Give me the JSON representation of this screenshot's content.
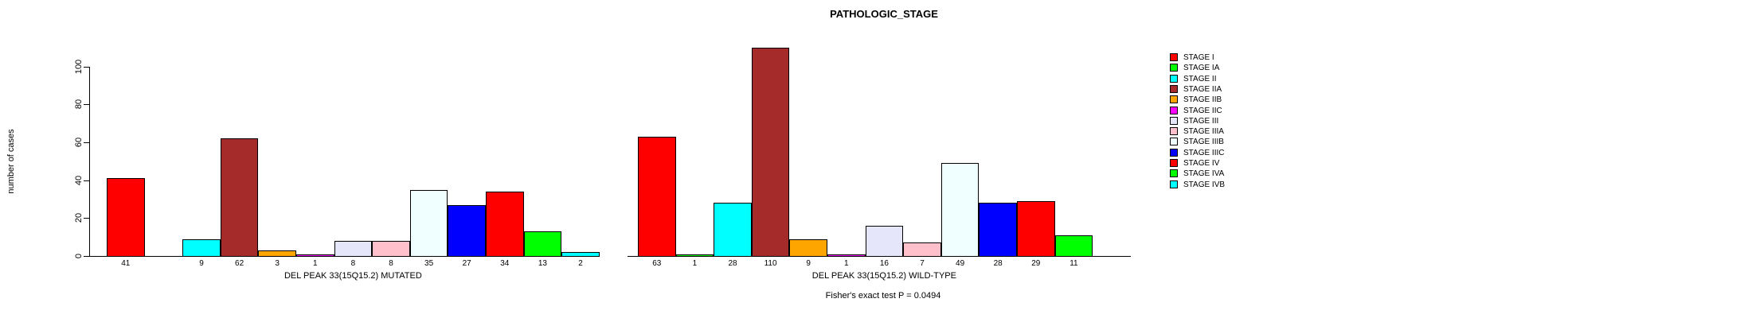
{
  "title": "PATHOLOGIC_STAGE",
  "ylabel": "number of cases",
  "footer": "Fisher's exact test P = 0.0494",
  "chart_data": {
    "type": "bar",
    "categories": [
      "STAGE I",
      "STAGE IA",
      "STAGE II",
      "STAGE IIA",
      "STAGE IIB",
      "STAGE IIC",
      "STAGE III",
      "STAGE IIIA",
      "STAGE IIIB",
      "STAGE IIIC",
      "STAGE IV",
      "STAGE IVA",
      "STAGE IVB"
    ],
    "colors": [
      "#FF0000",
      "#00FF00",
      "#00FFFF",
      "#A52A2A",
      "#FFA500",
      "#FF00FF",
      "#E6E6FA",
      "#FFC0CB",
      "#F0FFFF",
      "#0000FF",
      "#FF0000",
      "#00FF00",
      "#00FFFF"
    ],
    "series": [
      {
        "name": "DEL PEAK 33(15Q15.2) MUTATED",
        "values": [
          41,
          0,
          9,
          62,
          3,
          1,
          8,
          8,
          35,
          27,
          34,
          13,
          2
        ]
      },
      {
        "name": "DEL PEAK 33(15Q15.2) WILD-TYPE",
        "values": [
          63,
          1,
          28,
          110,
          9,
          1,
          16,
          7,
          49,
          28,
          29,
          11,
          0
        ]
      }
    ],
    "title": "PATHOLOGIC_STAGE",
    "xlabel": "",
    "ylabel": "number of cases",
    "ylim": [
      0,
      100
    ],
    "yticks": [
      0,
      20,
      40,
      60,
      80,
      100
    ],
    "bar_value_labels_shown": true,
    "zero_value_bars_hidden": true,
    "grid": false,
    "legend_position": "right-top",
    "annotation": "Fisher's exact test P = 0.0494"
  }
}
